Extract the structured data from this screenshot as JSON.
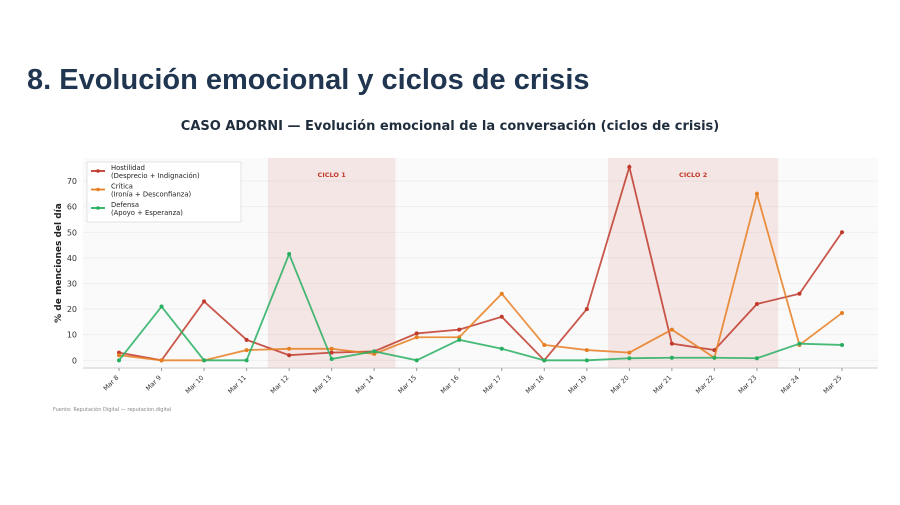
{
  "slide": {
    "title": "8. Evolución emocional y ciclos de crisis"
  },
  "chart_data": {
    "type": "line",
    "title": "CASO ADORNI — Evolución emocional de la conversación (ciclos de crisis)",
    "ylabel": "% de menciones del día",
    "xlabel": "",
    "ylim": [
      -3,
      79
    ],
    "yticks": [
      0,
      10,
      20,
      30,
      40,
      50,
      60,
      70
    ],
    "grid": true,
    "legend_position": "top-left",
    "categories": [
      "Mar 8",
      "Mar 9",
      "Mar 10",
      "Mar 11",
      "Mar 12",
      "Mar 13",
      "Mar 14",
      "Mar 15",
      "Mar 16",
      "Mar 17",
      "Mar 18",
      "Mar 19",
      "Mar 20",
      "Mar 21",
      "Mar 22",
      "Mar 23",
      "Mar 24",
      "Mar 25"
    ],
    "series": [
      {
        "name": "Hostilidad",
        "subname": "(Desprecio + Indignación)",
        "color": "#c0392b",
        "values": [
          3,
          0,
          23,
          8,
          2,
          3,
          3.5,
          10.5,
          12,
          17,
          0,
          20,
          75.5,
          6.5,
          4,
          22,
          26,
          50
        ]
      },
      {
        "name": "Crítica",
        "subname": "(Ironía + Desconfianza)",
        "color": "#e67e22",
        "values": [
          2,
          0,
          0,
          4,
          4.5,
          4.5,
          2.5,
          9,
          9,
          26,
          6,
          4,
          3,
          12,
          1,
          65,
          6,
          18.5
        ]
      },
      {
        "name": "Defensa",
        "subname": "(Apoyo + Esperanza)",
        "color": "#27ae60",
        "values": [
          0,
          21,
          0,
          0,
          41.5,
          0.5,
          3.5,
          0,
          8,
          4.5,
          0,
          0,
          0.8,
          1,
          1,
          0.8,
          6.5,
          6
        ]
      }
    ],
    "annotations": [
      {
        "label": "CICLO 1",
        "from": "Mar 12",
        "to": "Mar 14",
        "color": "#c0392b"
      },
      {
        "label": "CICLO 2",
        "from": "Mar 20",
        "to": "Mar 23",
        "color": "#c0392b"
      }
    ],
    "source": "Fuente: Reputación Digital — reputacion.digital"
  }
}
